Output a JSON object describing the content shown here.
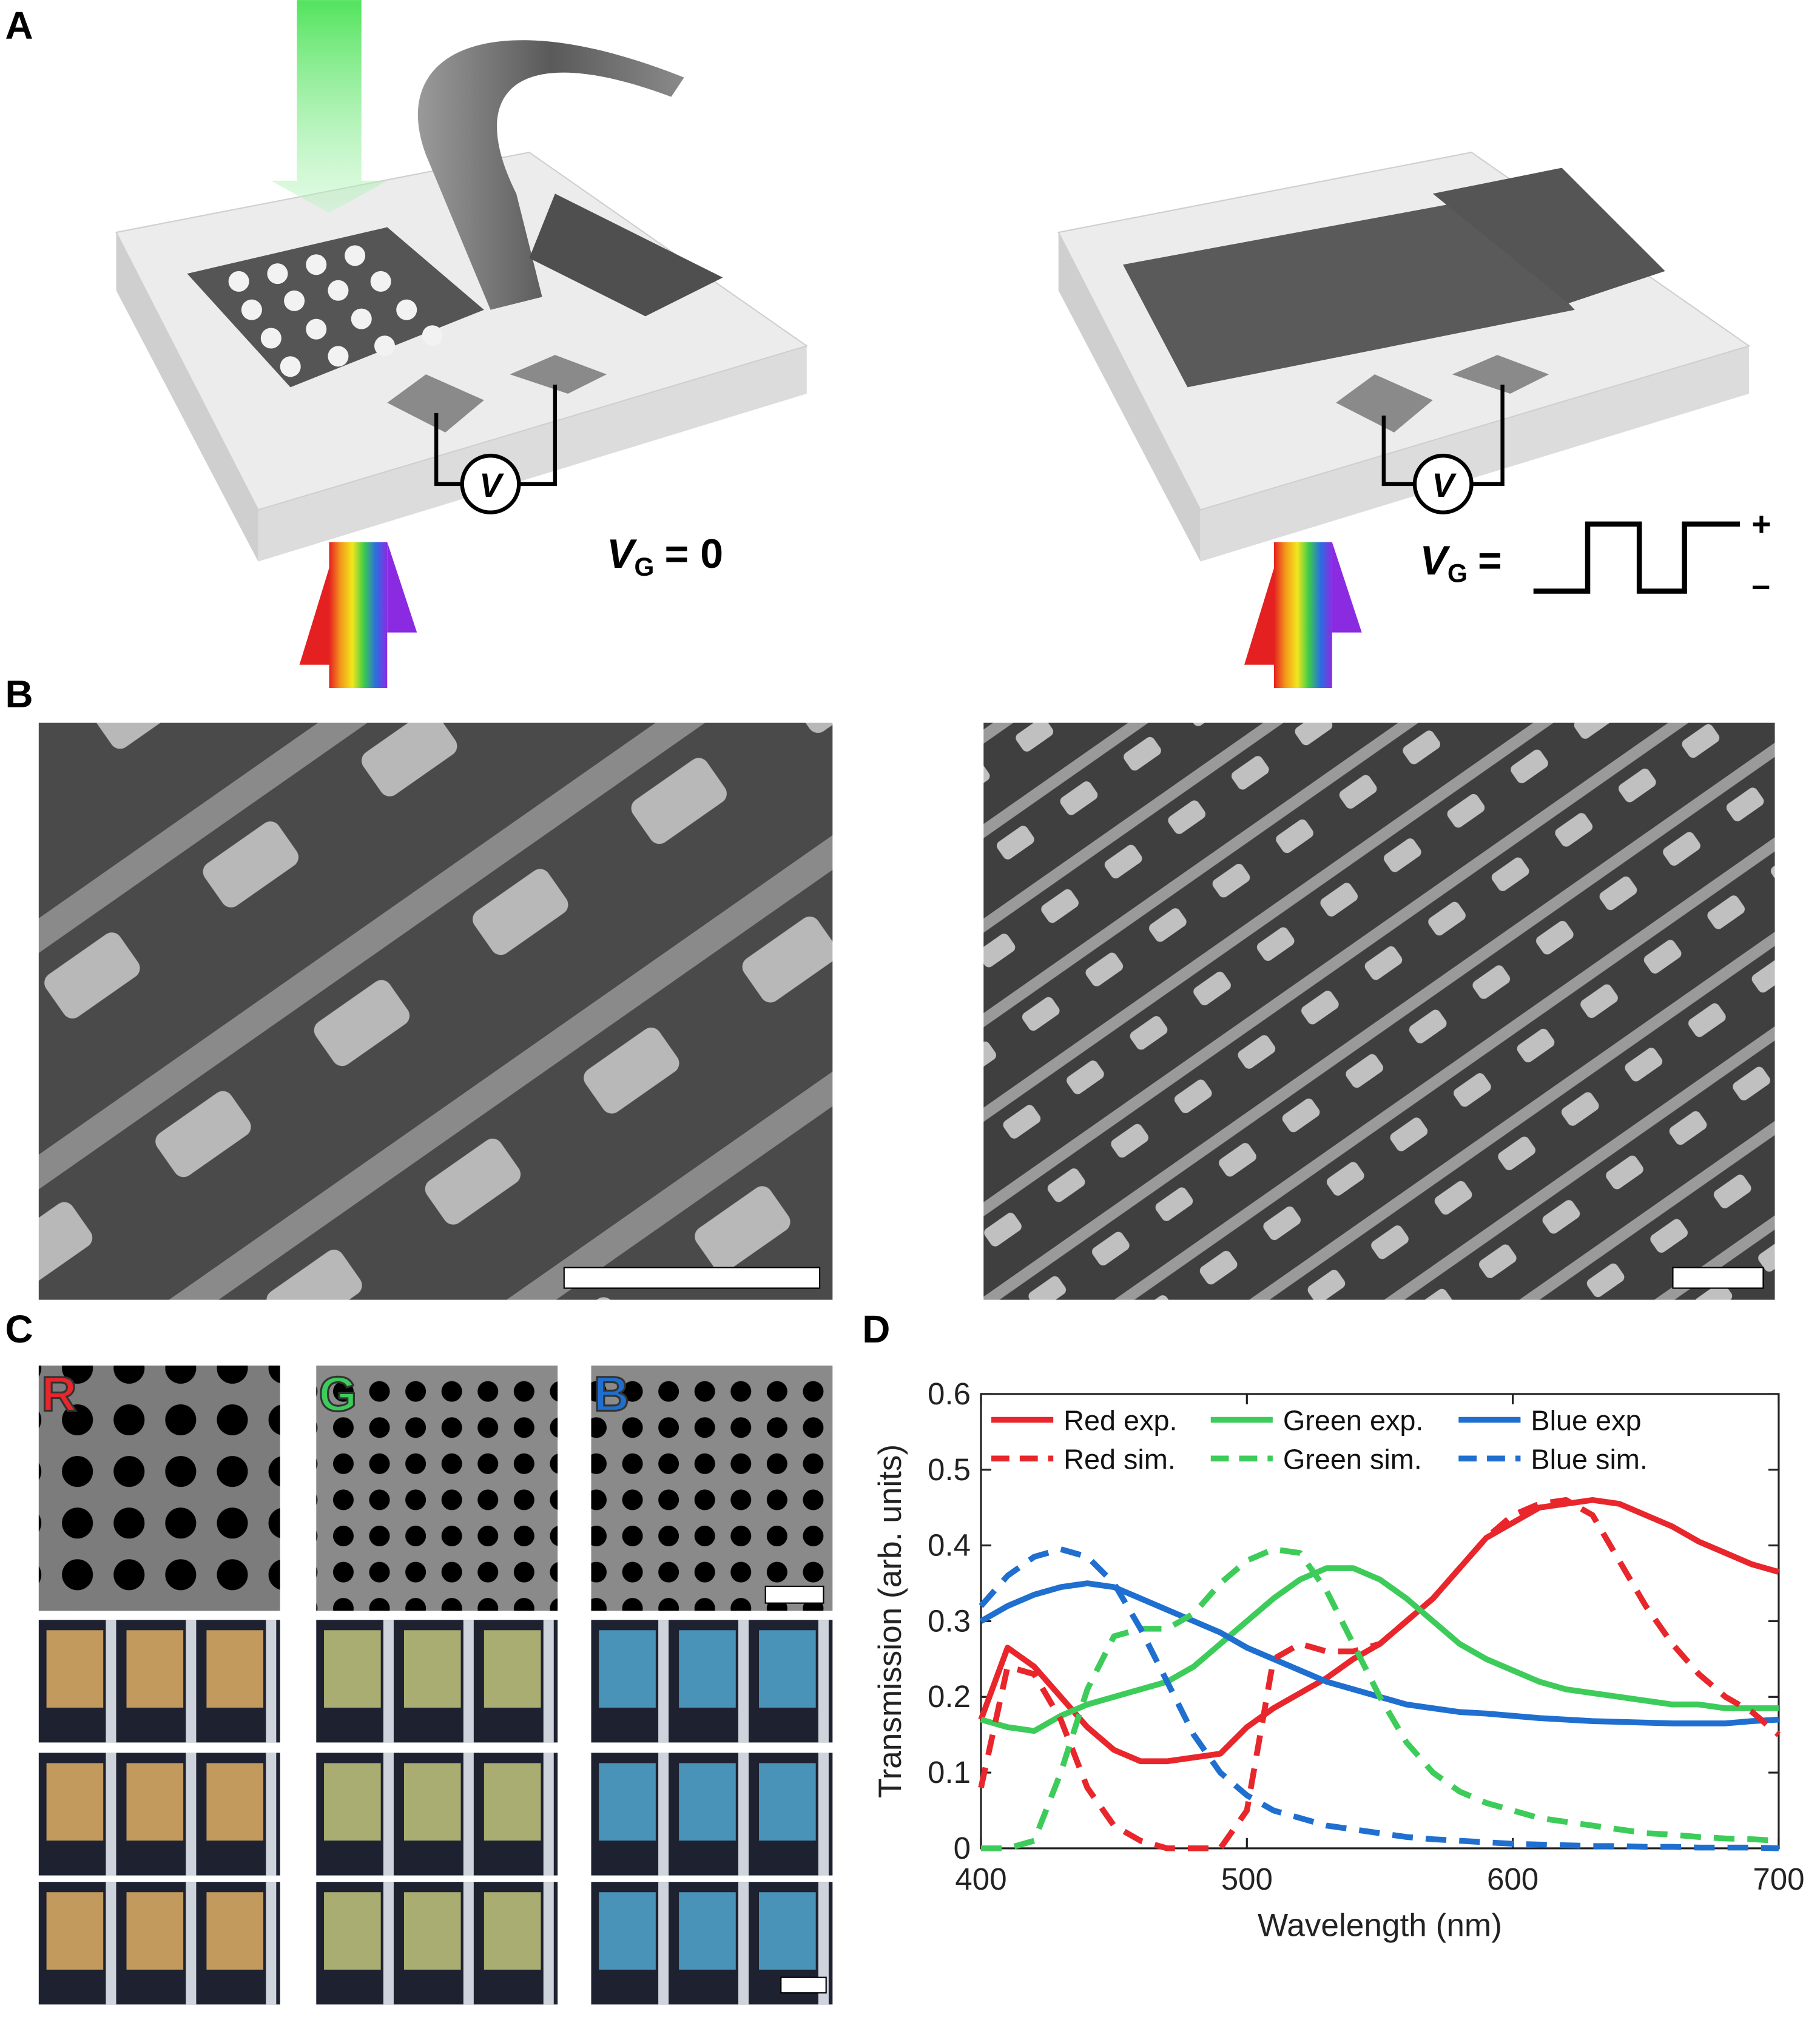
{
  "panels": {
    "a": "A",
    "b": "B",
    "c": "C",
    "d": "D"
  },
  "figure_a": {
    "gate_symbol": "V",
    "gate_subscript": "G",
    "left_value": "= 0",
    "right_equals": "=",
    "plus": "+",
    "minus": "–",
    "meter": "V"
  },
  "figure_c": {
    "red": "R",
    "green": "G",
    "blue": "B"
  },
  "chart_data": {
    "type": "line",
    "xlabel": "Wavelength (nm)",
    "ylabel": "Transmission (arb. units)",
    "xlim": [
      400,
      700
    ],
    "ylim": [
      0,
      0.6
    ],
    "xticks": [
      400,
      500,
      600,
      700
    ],
    "yticks": [
      0,
      0.1,
      0.2,
      0.3,
      0.4,
      0.5,
      0.6
    ],
    "x": [
      400,
      410,
      420,
      430,
      440,
      450,
      460,
      470,
      480,
      490,
      500,
      510,
      520,
      530,
      540,
      550,
      560,
      570,
      580,
      590,
      600,
      610,
      620,
      630,
      640,
      650,
      660,
      670,
      680,
      690,
      700
    ],
    "series": [
      {
        "name": "Red exp.",
        "color": "#e8262b",
        "linestyle": "solid",
        "values": [
          0.17,
          0.265,
          0.24,
          0.2,
          0.16,
          0.13,
          0.115,
          0.115,
          0.12,
          0.125,
          0.16,
          0.185,
          0.205,
          0.225,
          0.25,
          0.27,
          0.3,
          0.33,
          0.37,
          0.41,
          0.43,
          0.45,
          0.455,
          0.46,
          0.455,
          0.44,
          0.425,
          0.405,
          0.39,
          0.375,
          0.365
        ]
      },
      {
        "name": "Green exp.",
        "color": "#3dcc5a",
        "linestyle": "solid",
        "values": [
          0.17,
          0.16,
          0.155,
          0.175,
          0.19,
          0.2,
          0.21,
          0.22,
          0.24,
          0.27,
          0.3,
          0.33,
          0.355,
          0.37,
          0.37,
          0.355,
          0.33,
          0.3,
          0.27,
          0.25,
          0.235,
          0.22,
          0.21,
          0.205,
          0.2,
          0.195,
          0.19,
          0.19,
          0.185,
          0.185,
          0.185
        ]
      },
      {
        "name": "Blue exp",
        "color": "#1f6fd0",
        "linestyle": "solid",
        "values": [
          0.3,
          0.32,
          0.335,
          0.345,
          0.35,
          0.345,
          0.33,
          0.315,
          0.3,
          0.285,
          0.265,
          0.25,
          0.235,
          0.22,
          0.21,
          0.2,
          0.19,
          0.185,
          0.18,
          0.178,
          0.175,
          0.172,
          0.17,
          0.168,
          0.167,
          0.166,
          0.165,
          0.165,
          0.165,
          0.168,
          0.17
        ]
      },
      {
        "name": "Red sim.",
        "color": "#e8262b",
        "linestyle": "dashed",
        "values": [
          0.08,
          0.24,
          0.23,
          0.17,
          0.08,
          0.03,
          0.01,
          0,
          0,
          0,
          0.05,
          0.25,
          0.27,
          0.26,
          0.26,
          0.27,
          0.3,
          0.33,
          0.37,
          0.41,
          0.44,
          0.455,
          0.46,
          0.44,
          0.38,
          0.32,
          0.27,
          0.23,
          0.2,
          0.18,
          0.15
        ]
      },
      {
        "name": "Green sim.",
        "color": "#3dcc5a",
        "linestyle": "dashed",
        "values": [
          0,
          0,
          0.01,
          0.1,
          0.21,
          0.28,
          0.29,
          0.29,
          0.31,
          0.35,
          0.38,
          0.395,
          0.39,
          0.34,
          0.27,
          0.2,
          0.14,
          0.1,
          0.075,
          0.06,
          0.05,
          0.04,
          0.035,
          0.03,
          0.025,
          0.02,
          0.018,
          0.015,
          0.013,
          0.012,
          0.01
        ]
      },
      {
        "name": "Blue sim.",
        "color": "#1f6fd0",
        "linestyle": "dashed",
        "values": [
          0.32,
          0.36,
          0.385,
          0.395,
          0.385,
          0.35,
          0.29,
          0.22,
          0.15,
          0.1,
          0.07,
          0.05,
          0.04,
          0.03,
          0.025,
          0.02,
          0.015,
          0.012,
          0.01,
          0.008,
          0.006,
          0.005,
          0.004,
          0.003,
          0.003,
          0.002,
          0.002,
          0.001,
          0.001,
          0.001,
          0
        ]
      }
    ]
  }
}
